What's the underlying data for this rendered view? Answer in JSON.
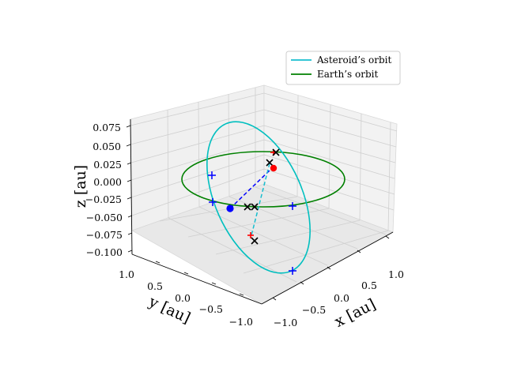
{
  "chart_data": {
    "type": "3d-line",
    "title": "",
    "xlabel": "x [au]",
    "ylabel": "y [au]",
    "zlabel": "z [au]",
    "xlim": [
      -1.2,
      1.2
    ],
    "ylim": [
      -1.2,
      1.2
    ],
    "zlim": [
      -0.11,
      0.09
    ],
    "x_ticks": [
      "−1.0",
      "−0.5",
      "0.0",
      "0.5",
      "1.0"
    ],
    "y_ticks": [
      "−1.0",
      "−0.5",
      "0.0",
      "0.5",
      "1.0"
    ],
    "z_ticks": [
      "−0.100",
      "−0.075",
      "−0.050",
      "−0.025",
      "0.000",
      "0.025",
      "0.050",
      "0.075"
    ],
    "grid": true,
    "legend_position": "top-right",
    "legend": [
      {
        "label": "Asteroid’s orbit",
        "color": "#17becf"
      },
      {
        "label": "Earth’s orbit",
        "color": "#008000"
      }
    ],
    "series": [
      {
        "name": "Asteroid’s orbit",
        "kind": "ellipse",
        "color": "#00bfbf",
        "center": [
          0.0,
          0.0,
          -0.02
        ],
        "a": 1.0,
        "b": 0.78,
        "inclination_max_z": 0.075
      },
      {
        "name": "Earth’s orbit",
        "kind": "circle",
        "color": "#008000",
        "center": [
          0.0,
          0.0,
          0.0
        ],
        "radius": 1.0
      }
    ],
    "markers": {
      "blue_plus": [
        [
          0.55,
          0.74,
          0.01
        ],
        [
          -0.12,
          1.0,
          -0.02
        ],
        [
          0.96,
          -0.28,
          -0.02
        ],
        [
          -0.55,
          -0.75,
          -0.08
        ]
      ],
      "black_x": [
        [
          -0.08,
          -0.37,
          0.0
        ],
        [
          0.16,
          0.0,
          0.0
        ],
        [
          0.4,
          0.7,
          -0.03
        ],
        [
          -0.38,
          0.6,
          -0.03
        ],
        [
          -0.56,
          0.64,
          -0.06
        ]
      ],
      "red_plus": [
        [
          0.0,
          -0.3,
          0.01
        ],
        [
          -0.56,
          0.64,
          -0.06
        ]
      ],
      "red_point": [
        0.06,
        -0.3,
        0.01
      ],
      "blue_point": [
        0.23,
        0.75,
        -0.04
      ]
    },
    "dashed_lines": [
      {
        "color": "#0000ff",
        "from": [
          0.23,
          0.75,
          -0.04
        ],
        "to": [
          0.06,
          -0.3,
          0.01
        ]
      },
      {
        "color": "#17becf",
        "from": [
          0.0,
          -0.3,
          0.01
        ],
        "to": [
          -0.56,
          0.64,
          -0.06
        ]
      }
    ]
  }
}
